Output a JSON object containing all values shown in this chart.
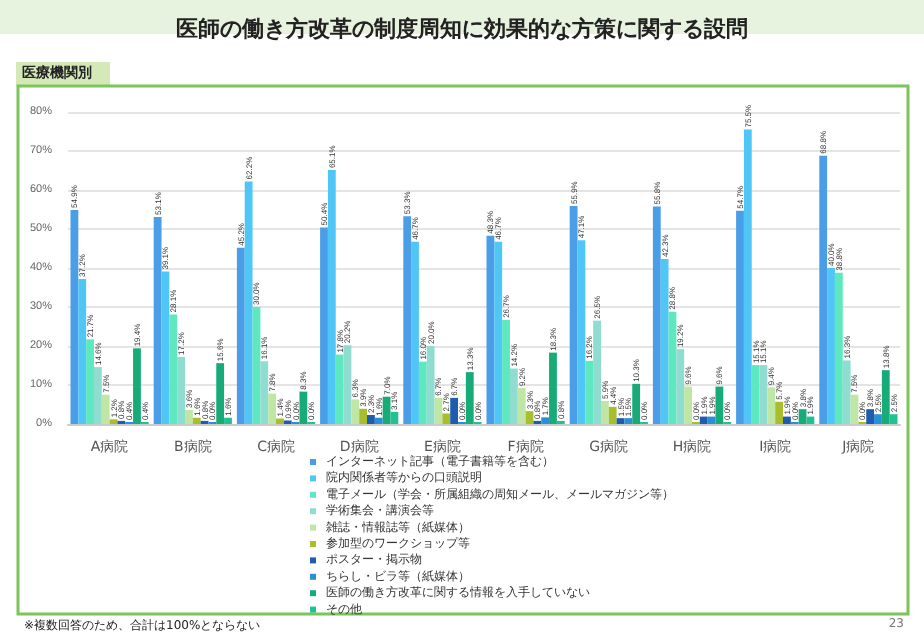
{
  "chart_data": {
    "type": "bar",
    "title": "医師の働き方改革の制度周知に効果的な方策に関する設問",
    "subtitle": "医療機関別",
    "categories": [
      "A病院",
      "B病院",
      "C病院",
      "D病院",
      "E病院",
      "F病院",
      "G病院",
      "H病院",
      "I病院",
      "J病院"
    ],
    "ylim": [
      0,
      80
    ],
    "yticks": [
      {
        "value": 0,
        "label": "0%"
      },
      {
        "value": 10,
        "label": "10%"
      },
      {
        "value": 20,
        "label": "20%"
      },
      {
        "value": 30,
        "label": "30%"
      },
      {
        "value": 40,
        "label": "40%"
      },
      {
        "value": 50,
        "label": "50%"
      },
      {
        "value": 60,
        "label": "60%"
      },
      {
        "value": 70,
        "label": "70%"
      },
      {
        "value": 80,
        "label": "80%"
      }
    ],
    "grid": "y",
    "legend": "bottom",
    "series": [
      {
        "name": "インターネット記事（電子書籍等を含む）",
        "color": "#4a9ee8",
        "values": [
          54.9,
          53.1,
          45.2,
          50.4,
          53.3,
          48.3,
          55.9,
          55.8,
          54.7,
          68.8
        ],
        "value_labels": [
          "54.9%",
          "53.1%",
          "45.2%",
          "50.4%",
          "53.3%",
          "48.3%",
          "55.9%",
          "55.8%",
          "54.7%",
          "68.8%"
        ]
      },
      {
        "name": "院内関係者等からの口頭説明",
        "color": "#4fc6f5",
        "values": [
          37.2,
          39.1,
          62.2,
          65.1,
          46.7,
          46.7,
          47.1,
          42.3,
          75.5,
          40.0
        ],
        "value_labels": [
          "37.2%",
          "39.1%",
          "62.2%",
          "65.1%",
          "46.7%",
          "46.7%",
          "47.1%",
          "42.3%",
          "75.5%",
          "40.0%"
        ]
      },
      {
        "name": "電子メール（学会・所属組織の周知メール、メールマガジン等）",
        "color": "#5ee8bf",
        "values": [
          21.7,
          28.1,
          30.0,
          17.8,
          16.0,
          26.7,
          16.2,
          28.8,
          15.1,
          38.8
        ],
        "value_labels": [
          "21.7%",
          "28.1%",
          "30.0%",
          "17.8%",
          "16.0%",
          "26.7%",
          "16.2%",
          "28.8%",
          "15.1%",
          "38.8%"
        ]
      },
      {
        "name": "学術集会・講演会等",
        "color": "#8fdcd0",
        "values": [
          14.6,
          17.2,
          16.1,
          20.2,
          20.0,
          14.2,
          26.5,
          19.2,
          15.1,
          16.3
        ],
        "value_labels": [
          "14.6%",
          "17.2%",
          "16.1%",
          "20.2%",
          "20.0%",
          "14.2%",
          "26.5%",
          "19.2%",
          "15.1%",
          "16.3%"
        ]
      },
      {
        "name": "雑誌・情報誌等（紙媒体）",
        "color": "#bfe6a4",
        "values": [
          7.5,
          3.6,
          7.8,
          6.3,
          6.7,
          9.2,
          5.9,
          9.6,
          9.4,
          7.5
        ],
        "value_labels": [
          "7.5%",
          "3.6%",
          "7.8%",
          "6.3%",
          "6.7%",
          "9.2%",
          "5.9%",
          "9.6%",
          "9.4%",
          "7.5%"
        ]
      },
      {
        "name": "参加型のワークショップ等",
        "color": "#a9be2c",
        "values": [
          1.2,
          1.6,
          1.4,
          3.9,
          2.7,
          3.3,
          4.4,
          0.0,
          5.7,
          0.0
        ],
        "value_labels": [
          "1.2%",
          "1.6%",
          "1.4%",
          "3.9%",
          "2.7%",
          "3.3%",
          "4.4%",
          "0.0%",
          "5.7%",
          "0.0%"
        ]
      },
      {
        "name": "ポスター・掲示物",
        "color": "#1e5cae",
        "values": [
          0.8,
          0.8,
          0.9,
          2.3,
          6.7,
          0.8,
          1.5,
          1.9,
          1.9,
          3.8
        ],
        "value_labels": [
          "0.8%",
          "0.8%",
          "0.9%",
          "2.3%",
          "6.7%",
          "0.8%",
          "1.5%",
          "1.9%",
          "1.9%",
          "3.8%"
        ]
      },
      {
        "name": "ちらし・ビラ等（紙媒体）",
        "color": "#2b8fd6",
        "values": [
          0.4,
          0.0,
          0.0,
          1.6,
          0.0,
          1.7,
          1.5,
          1.9,
          0.0,
          2.5
        ],
        "value_labels": [
          "0.4%",
          "0.0%",
          "0.0%",
          "1.6%",
          "0.0%",
          "1.7%",
          "1.5%",
          "1.9%",
          "0.0%",
          "2.5%"
        ]
      },
      {
        "name": "医師の働き方改革に関する情報を入手していない",
        "color": "#17ab78",
        "values": [
          19.4,
          15.6,
          8.3,
          7.0,
          13.3,
          18.3,
          10.3,
          9.6,
          3.8,
          13.8
        ],
        "value_labels": [
          "19.4%",
          "15.6%",
          "8.3%",
          "7.0%",
          "13.3%",
          "18.3%",
          "10.3%",
          "9.6%",
          "3.8%",
          "13.8%"
        ]
      },
      {
        "name": "その他",
        "color": "#22c194",
        "values": [
          0.4,
          1.6,
          0.0,
          3.1,
          0.0,
          0.8,
          0.0,
          0.0,
          1.9,
          2.5
        ],
        "value_labels": [
          "0.4%",
          "1.6%",
          "0.0%",
          "3.1%",
          "0.0%",
          "0.8%",
          "0.0%",
          "0.0%",
          "1.9%",
          "2.5%"
        ]
      }
    ],
    "annotations": [
      "※複数回答のため、合計は100%とならない",
      "23"
    ]
  }
}
